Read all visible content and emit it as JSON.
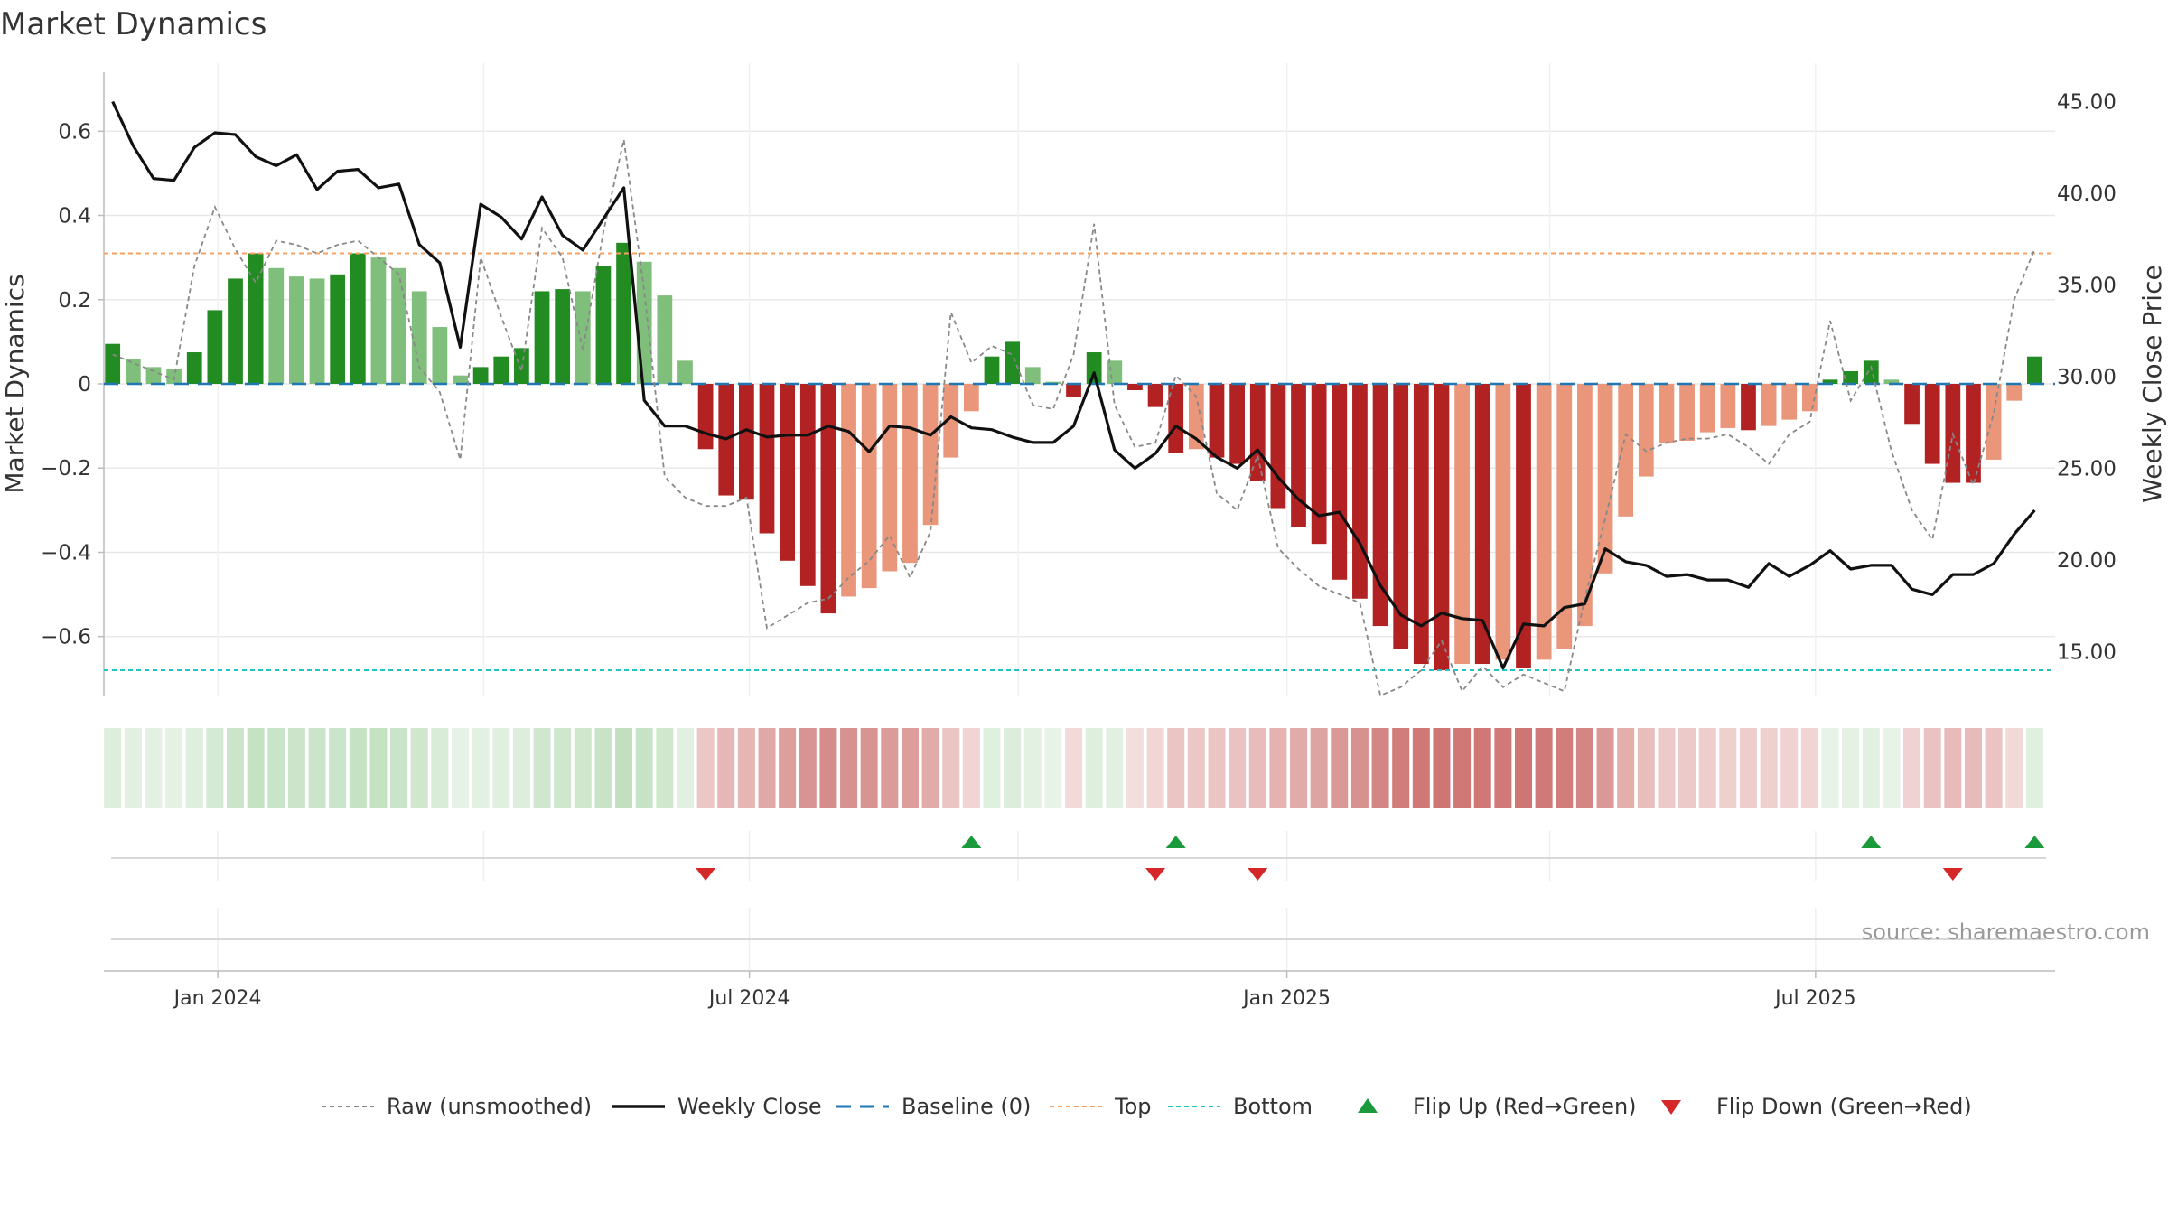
{
  "chart_data": {
    "type": "bar",
    "title": "Market Dynamics",
    "ylabel": "Market Dynamics",
    "y2label": "Weekly Close Price",
    "ylim": [
      -0.74,
      0.74
    ],
    "y2lim": [
      12.6,
      46.6
    ],
    "yticks": [
      {
        "v": 0.6,
        "label": "0.6"
      },
      {
        "v": 0.4,
        "label": "0.4"
      },
      {
        "v": 0.2,
        "label": "0.2"
      },
      {
        "v": 0,
        "label": "0"
      },
      {
        "v": -0.2,
        "label": "−0.2"
      },
      {
        "v": -0.4,
        "label": "−0.4"
      },
      {
        "v": -0.6,
        "label": "−0.6"
      }
    ],
    "y2ticks": [
      {
        "v": 45,
        "label": "45.00"
      },
      {
        "v": 40,
        "label": "40.00"
      },
      {
        "v": 35,
        "label": "35.00"
      },
      {
        "v": 30,
        "label": "30.00"
      },
      {
        "v": 25,
        "label": "25.00"
      },
      {
        "v": 20,
        "label": "20.00"
      },
      {
        "v": 15,
        "label": "15.00"
      }
    ],
    "x_start": "2023-11-26",
    "x_step_days": 7,
    "xlim": [
      "2023-11-23",
      "2025-09-21"
    ],
    "xticks": [
      {
        "date": "2024-01-01",
        "label": "Jan 2024"
      },
      {
        "date": "2024-07-01",
        "label": "Jul 2024"
      },
      {
        "date": "2025-01-01",
        "label": "Jan 2025"
      },
      {
        "date": "2025-07-01",
        "label": "Jul 2025"
      }
    ],
    "xgrid_dates": [
      "2024-01-01",
      "2024-04-01",
      "2024-07-01",
      "2024-10-01",
      "2025-01-01",
      "2025-04-01",
      "2025-07-01"
    ],
    "smoothed": [
      0.095,
      0.06,
      0.04,
      0.035,
      0.075,
      0.175,
      0.25,
      0.31,
      0.275,
      0.255,
      0.25,
      0.26,
      0.31,
      0.3,
      0.275,
      0.22,
      0.135,
      0.02,
      0.04,
      0.065,
      0.085,
      0.22,
      0.225,
      0.22,
      0.28,
      0.335,
      0.29,
      0.21,
      0.055,
      -0.155,
      -0.265,
      -0.275,
      -0.355,
      -0.42,
      -0.48,
      -0.545,
      -0.505,
      -0.485,
      -0.445,
      -0.425,
      -0.335,
      -0.175,
      -0.065,
      0.065,
      0.1,
      0.04,
      0.005,
      -0.03,
      0.075,
      0.055,
      -0.015,
      -0.055,
      -0.165,
      -0.155,
      -0.175,
      -0.19,
      -0.23,
      -0.295,
      -0.34,
      -0.38,
      -0.465,
      -0.51,
      -0.575,
      -0.63,
      -0.665,
      -0.68,
      -0.665,
      -0.665,
      -0.655,
      -0.675,
      -0.655,
      -0.63,
      -0.575,
      -0.45,
      -0.315,
      -0.22,
      -0.14,
      -0.135,
      -0.115,
      -0.105,
      -0.11,
      -0.1,
      -0.085,
      -0.065,
      0.01,
      0.03,
      0.055,
      0.01,
      -0.095,
      -0.19,
      -0.235,
      -0.235,
      -0.18,
      -0.04,
      0.065
    ],
    "raw": [
      0.07,
      0.05,
      0.03,
      0.01,
      0.28,
      0.42,
      0.32,
      0.24,
      0.34,
      0.33,
      0.31,
      0.33,
      0.34,
      0.3,
      0.26,
      0.04,
      -0.02,
      -0.18,
      0.3,
      0.16,
      0.03,
      0.37,
      0.3,
      0.08,
      0.36,
      0.58,
      0.22,
      -0.22,
      -0.27,
      -0.29,
      -0.29,
      -0.27,
      -0.58,
      -0.55,
      -0.52,
      -0.51,
      -0.46,
      -0.42,
      -0.36,
      -0.46,
      -0.35,
      0.17,
      0.05,
      0.09,
      0.07,
      -0.05,
      -0.06,
      0.07,
      0.38,
      -0.05,
      -0.15,
      -0.14,
      0.02,
      -0.03,
      -0.26,
      -0.3,
      -0.17,
      -0.39,
      -0.44,
      -0.48,
      -0.5,
      -0.52,
      -0.74,
      -0.72,
      -0.68,
      -0.61,
      -0.73,
      -0.67,
      -0.72,
      -0.69,
      -0.71,
      -0.73,
      -0.51,
      -0.32,
      -0.12,
      -0.16,
      -0.14,
      -0.13,
      -0.13,
      -0.12,
      -0.15,
      -0.19,
      -0.12,
      -0.09,
      0.15,
      -0.04,
      0.04,
      -0.16,
      -0.3,
      -0.37,
      -0.12,
      -0.24,
      -0.07,
      0.2,
      0.32
    ],
    "close": [
      45,
      42.6,
      40.8,
      40.7,
      42.5,
      43.3,
      43.2,
      42,
      41.5,
      42.1,
      40.2,
      41.2,
      41.3,
      40.3,
      40.5,
      37.2,
      36.2,
      31.6,
      39.4,
      38.7,
      37.5,
      39.8,
      37.7,
      36.9,
      38.6,
      40.3,
      28.7,
      27.3,
      27.3,
      26.9,
      26.6,
      27.1,
      26.7,
      26.8,
      26.8,
      27.3,
      27,
      25.9,
      27.3,
      27.2,
      26.8,
      27.8,
      27.2,
      27.1,
      26.7,
      26.4,
      26.4,
      27.3,
      30.2,
      26,
      25,
      25.8,
      27.3,
      26.6,
      25.6,
      25,
      26,
      24.5,
      23.3,
      22.4,
      22.6,
      20.9,
      18.6,
      17,
      16.4,
      17.1,
      16.8,
      16.7,
      14.1,
      16.5,
      16.4,
      17.4,
      17.6,
      20.6,
      19.9,
      19.7,
      19.1,
      19.2,
      18.9,
      18.9,
      18.5,
      19.8,
      19.1,
      19.7,
      20.5,
      19.5,
      19.7,
      19.7,
      18.4,
      18.1,
      19.2,
      19.2,
      19.8,
      21.4,
      22.7
    ],
    "top_line": 0.31,
    "bottom_line": -0.68,
    "flip_up_dates": [
      "2024-09-15",
      "2024-11-24",
      "2025-07-20",
      "2025-09-14"
    ],
    "flip_down_dates": [
      "2024-06-16",
      "2024-11-17",
      "2024-12-22",
      "2025-08-17"
    ],
    "legend": [
      "Raw (unsmoothed)",
      "Weekly Close",
      "Baseline (0)",
      "Top",
      "Bottom",
      "Flip Up (Red→Green)",
      "Flip Down (Green→Red)"
    ],
    "legend_placement": "bottom-center",
    "source_note": "source: sharemaestro.com",
    "colors": {
      "pos_strong": "#228b22",
      "pos_weak": "#7fbf7b",
      "neg_strong": "#b22222",
      "neg_weak": "#e9967a",
      "raw": "#888888",
      "close": "#111111",
      "baseline": "#1f77b4",
      "top": "#f4a261",
      "bottom": "#20c4c4",
      "flip_up": "#1a9a3a",
      "flip_down": "#d62728",
      "grid": "#e8e8e8",
      "axis": "#bbbbbb",
      "text": "#333333"
    }
  }
}
